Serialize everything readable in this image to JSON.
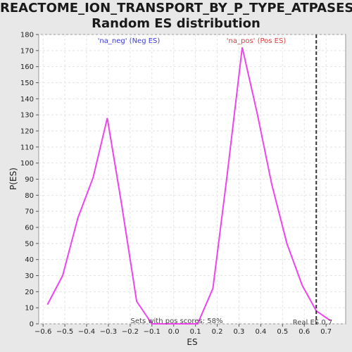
{
  "chart_data": {
    "type": "line",
    "title_line1": "REACTOME_ION_TRANSPORT_BY_P_TYPE_ATPASES:",
    "title_line2": "Random ES distribution",
    "xlabel": "ES",
    "ylabel": "P(ES)",
    "xlim": [
      -0.62,
      0.79
    ],
    "ylim": [
      0,
      180
    ],
    "xticks": [
      -0.6,
      -0.5,
      -0.4,
      -0.3,
      -0.2,
      -0.1,
      0.0,
      0.1,
      0.2,
      0.3,
      0.4,
      0.5,
      0.6,
      0.7
    ],
    "yticks": [
      0,
      10,
      20,
      30,
      40,
      50,
      60,
      70,
      80,
      90,
      100,
      110,
      120,
      130,
      140,
      150,
      160,
      170,
      180
    ],
    "grid": true,
    "legend_neg": "'na_neg' (Neg ES)",
    "legend_pos": "'na_pos' (Pos ES)",
    "series": [
      {
        "color": "#ee44ee",
        "x": [
          -0.58,
          -0.51,
          -0.44,
          -0.37,
          -0.305,
          -0.24,
          -0.17,
          -0.1,
          -0.03,
          0.04,
          0.11,
          0.18,
          0.245,
          0.315,
          0.385,
          0.45,
          0.52,
          0.59,
          0.655,
          0.72
        ],
        "y": [
          12,
          30,
          66,
          91,
          128,
          75,
          14,
          0,
          0,
          0,
          0,
          22,
          92,
          172,
          130,
          87,
          50,
          24,
          8,
          2
        ]
      }
    ],
    "real_es": 0.655,
    "real_es_label": "Real ES 0.7",
    "pos_scores_label": "Sets with pos scores: 58%"
  }
}
